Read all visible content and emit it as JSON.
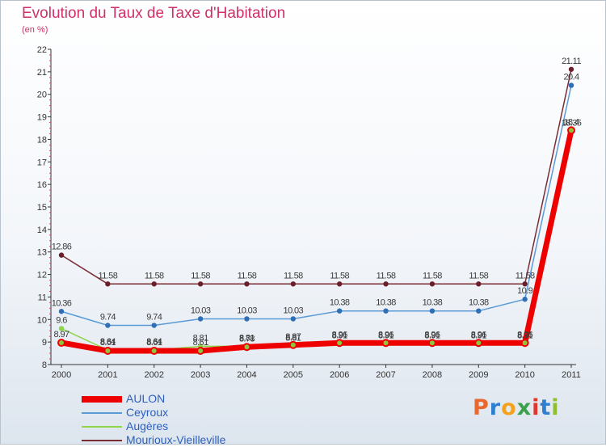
{
  "title": "Evolution du Taux de Taxe d'Habitation",
  "subtitle": "(en %)",
  "logo": {
    "letters": [
      "P",
      "r",
      "o",
      "x",
      "i",
      "t",
      "i"
    ],
    "colors": [
      "#e8682e",
      "#2f7fd0",
      "#f2a21d",
      "#3aa04a",
      "#e0362c",
      "#2f7fd0",
      "#8fbf2a"
    ]
  },
  "chart_data": {
    "type": "line",
    "x": [
      "2000",
      "2001",
      "2002",
      "2003",
      "2004",
      "2005",
      "2006",
      "2007",
      "2008",
      "2009",
      "2010",
      "2011"
    ],
    "ylim": [
      8,
      22
    ],
    "yticks": [
      8,
      9,
      10,
      11,
      12,
      13,
      14,
      15,
      16,
      17,
      18,
      19,
      20,
      21,
      22
    ],
    "grid": false,
    "legend_position": "bottom-left",
    "series": [
      {
        "name": "AULON",
        "color": "#ee0000",
        "marker_color": "#8cc63f",
        "values": [
          8.97,
          8.61,
          8.61,
          8.61,
          8.78,
          8.87,
          8.96,
          8.96,
          8.96,
          8.96,
          8.96,
          18.4
        ],
        "labels": [
          "8.97",
          "8.61",
          "8.61",
          "8.61",
          "8.78",
          "8.87",
          "8.96",
          "8.96",
          "8.96",
          "8.96",
          "8.96",
          "18.4"
        ]
      },
      {
        "name": "Ceyroux",
        "color": "#5b9bd5",
        "marker_color": "#2f6fb5",
        "values": [
          10.36,
          9.74,
          9.74,
          10.03,
          10.03,
          10.03,
          10.38,
          10.38,
          10.38,
          10.38,
          10.9,
          20.4
        ],
        "labels": [
          "10.36",
          "9.74",
          "9.74",
          "10.03",
          "10.03",
          "10.03",
          "10.38",
          "10.38",
          "10.38",
          "10.38",
          "10.9",
          "20.4"
        ]
      },
      {
        "name": "Augères",
        "color": "#8cd64a",
        "marker_color": "#8cd64a",
        "values": [
          9.6,
          8.64,
          8.64,
          8.81,
          8.81,
          8.81,
          8.91,
          8.91,
          8.91,
          8.91,
          8.91,
          18.35
        ],
        "labels": [
          "9.6",
          "8.64",
          "8.64",
          "8.81",
          "8.81",
          "8.81",
          "8.91",
          "8.91",
          "8.91",
          "8.91",
          "8.91",
          "18.35"
        ]
      },
      {
        "name": "Mourioux-Vieilleville",
        "color": "#7a2c34",
        "marker_color": "#6b1f2a",
        "values": [
          12.86,
          11.58,
          11.58,
          11.58,
          11.58,
          11.58,
          11.58,
          11.58,
          11.58,
          11.58,
          11.58,
          21.11
        ],
        "labels": [
          "12.86",
          "11.58",
          "11.58",
          "11.58",
          "11.58",
          "11.58",
          "11.58",
          "11.58",
          "11.58",
          "11.58",
          "11.58",
          "21.11"
        ]
      }
    ]
  }
}
